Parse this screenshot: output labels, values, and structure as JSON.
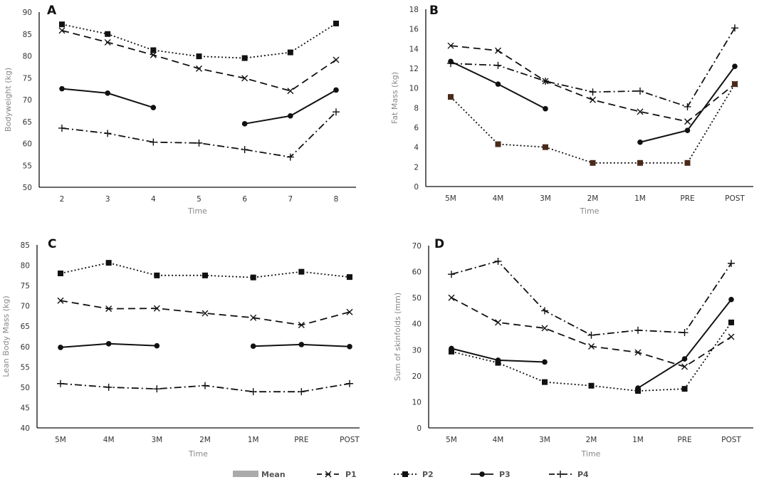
{
  "figure": {
    "legend": [
      {
        "name": "Mean",
        "style": "gray-band"
      },
      {
        "name": "P1",
        "style": "dashed-x"
      },
      {
        "name": "P2",
        "style": "dotted-square"
      },
      {
        "name": "P3",
        "style": "solid-circle"
      },
      {
        "name": "P4",
        "style": "dashdot-plus"
      }
    ],
    "colors": {
      "line": "#111111",
      "axis_title": "#888888",
      "mean": "#aaaaaa",
      "p2_marker_b": "#4a2a1a"
    }
  },
  "chart_data": [
    {
      "id": "A",
      "type": "line",
      "panel_label": "A",
      "title": "",
      "xlabel": "Time",
      "ylabel": "Bodyweight (kg)",
      "categories": [
        "2",
        "3",
        "4",
        "5",
        "6",
        "7",
        "8"
      ],
      "ylim": [
        50,
        90
      ],
      "yticks": [
        50,
        55,
        60,
        65,
        70,
        75,
        80,
        85,
        90
      ],
      "grid": false,
      "series": [
        {
          "name": "P1",
          "values": [
            85.8,
            83.1,
            80.2,
            77.1,
            74.9,
            72.0,
            79.1
          ]
        },
        {
          "name": "P2",
          "values": [
            87.2,
            85.0,
            81.3,
            79.9,
            79.5,
            80.8,
            87.4
          ]
        },
        {
          "name": "P3",
          "values": [
            72.5,
            71.5,
            68.2,
            null,
            64.5,
            66.3,
            72.2
          ]
        },
        {
          "name": "P4",
          "values": [
            63.5,
            62.3,
            60.3,
            60.1,
            58.6,
            56.9,
            67.2
          ]
        }
      ]
    },
    {
      "id": "B",
      "type": "line",
      "panel_label": "B",
      "title": "",
      "xlabel": "Time",
      "ylabel": "Fat Mass (kg)",
      "categories": [
        "5M",
        "4M",
        "3M",
        "2M",
        "1M",
        "PRE",
        "POST"
      ],
      "ylim": [
        0,
        18
      ],
      "yticks": [
        0,
        2,
        4,
        6,
        8,
        10,
        12,
        14,
        16,
        18
      ],
      "grid": false,
      "series": [
        {
          "name": "P1",
          "values": [
            14.3,
            13.8,
            10.7,
            8.8,
            7.6,
            6.6,
            10.4
          ]
        },
        {
          "name": "P2",
          "values": [
            9.1,
            4.3,
            4.0,
            2.4,
            2.4,
            2.4,
            10.4
          ]
        },
        {
          "name": "P3",
          "values": [
            12.7,
            10.4,
            7.9,
            null,
            4.5,
            5.7,
            12.2
          ]
        },
        {
          "name": "P4",
          "values": [
            12.5,
            12.3,
            10.7,
            9.6,
            9.7,
            8.1,
            16.1
          ]
        }
      ]
    },
    {
      "id": "C",
      "type": "line",
      "panel_label": "C",
      "title": "",
      "xlabel": "Time",
      "ylabel": "Lean Body Mass (kg)",
      "categories": [
        "5M",
        "4M",
        "3M",
        "2M",
        "1M",
        "PRE",
        "POST"
      ],
      "ylim": [
        40,
        85
      ],
      "yticks": [
        40,
        45,
        50,
        55,
        60,
        65,
        70,
        75,
        80,
        85
      ],
      "grid": false,
      "series": [
        {
          "name": "P1",
          "values": [
            71.3,
            69.3,
            69.4,
            68.2,
            67.1,
            65.3,
            68.5
          ]
        },
        {
          "name": "P2",
          "values": [
            78.0,
            80.6,
            77.5,
            77.5,
            77.0,
            78.4,
            77.1
          ]
        },
        {
          "name": "P3",
          "values": [
            59.8,
            60.7,
            60.2,
            null,
            60.1,
            60.5,
            60.0
          ]
        },
        {
          "name": "P4",
          "values": [
            50.9,
            50.0,
            49.6,
            50.4,
            48.9,
            48.9,
            50.9
          ]
        }
      ]
    },
    {
      "id": "D",
      "type": "line",
      "panel_label": "D",
      "title": "",
      "xlabel": "Time",
      "ylabel": "Sum of skinfolds (mm)",
      "categories": [
        "5M",
        "4M",
        "3M",
        "2M",
        "1M",
        "PRE",
        "POST"
      ],
      "ylim": [
        0,
        70
      ],
      "yticks": [
        0,
        10,
        20,
        30,
        40,
        50,
        60,
        70
      ],
      "grid": false,
      "series": [
        {
          "name": "P1",
          "values": [
            50.0,
            40.5,
            38.3,
            31.3,
            29.0,
            23.5,
            35.0
          ]
        },
        {
          "name": "P2",
          "values": [
            29.3,
            25.0,
            17.6,
            16.2,
            14.2,
            15.0,
            40.5
          ]
        },
        {
          "name": "P3",
          "values": [
            30.5,
            26.0,
            25.3,
            null,
            15.3,
            26.5,
            49.3
          ]
        },
        {
          "name": "P4",
          "values": [
            59.0,
            64.0,
            45.0,
            35.6,
            37.5,
            36.6,
            63.2
          ]
        }
      ]
    }
  ]
}
